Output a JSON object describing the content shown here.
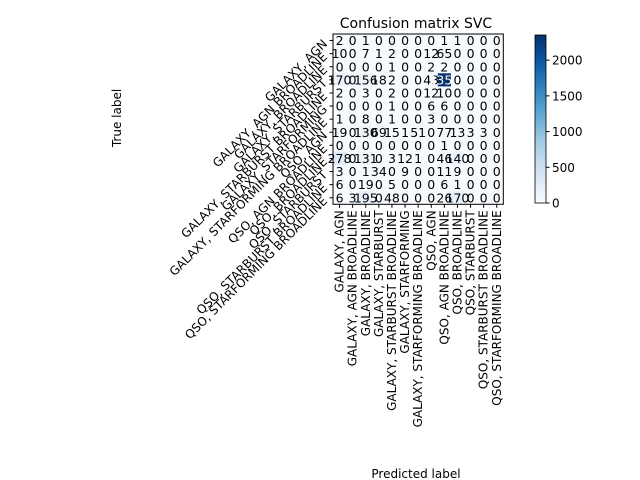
{
  "chart_data": {
    "type": "heatmap",
    "title": "Confusion matrix SVC",
    "xlabel": "Predicted label",
    "ylabel": "True label",
    "categories": [
      "GALAXY, AGN",
      "GALAXY, AGN BROADLINE",
      "GALAXY, BROADLINE",
      "GALAXY, STARBURST",
      "GALAXY, STARBURST BROADLINE",
      "GALAXY, STARFORMING",
      "GALAXY, STARFORMING BROADLINE",
      "QSO, AGN",
      "QSO, AGN BROADLINE",
      "QSO, BROADLINE",
      "QSO, STARBURST",
      "QSO, STARBURST BROADLINE",
      "QSO, STARFORMING BROADLINE"
    ],
    "matrix": [
      [
        2,
        0,
        1,
        0,
        0,
        0,
        0,
        0,
        1,
        1,
        0,
        0,
        0
      ],
      [
        10,
        0,
        7,
        1,
        2,
        0,
        0,
        12,
        65,
        0,
        0,
        0,
        0
      ],
      [
        0,
        0,
        0,
        0,
        1,
        0,
        0,
        2,
        2,
        0,
        0,
        0,
        0
      ],
      [
        170,
        0,
        156,
        18,
        2,
        0,
        0,
        43,
        2352,
        0,
        0,
        0,
        0
      ],
      [
        2,
        0,
        3,
        0,
        2,
        0,
        0,
        12,
        10,
        0,
        0,
        0,
        0
      ],
      [
        0,
        0,
        0,
        0,
        1,
        0,
        0,
        6,
        6,
        0,
        0,
        0,
        0
      ],
      [
        1,
        0,
        8,
        0,
        1,
        0,
        0,
        3,
        0,
        0,
        0,
        0,
        0
      ],
      [
        19,
        0,
        130,
        69,
        15,
        1,
        51,
        0,
        77,
        13,
        3,
        3,
        0
      ],
      [
        0,
        0,
        0,
        0,
        0,
        0,
        0,
        0,
        1,
        0,
        0,
        0,
        0
      ],
      [
        278,
        0,
        131,
        0,
        3,
        12,
        1,
        0,
        46,
        140,
        0,
        0,
        0
      ],
      [
        3,
        0,
        1,
        34,
        0,
        9,
        0,
        0,
        11,
        9,
        0,
        0,
        0
      ],
      [
        6,
        0,
        19,
        0,
        5,
        0,
        0,
        0,
        6,
        1,
        0,
        0,
        0
      ],
      [
        6,
        3,
        195,
        0,
        48,
        0,
        0,
        0,
        26,
        170,
        0,
        0,
        0
      ]
    ],
    "colorbar": {
      "colormap": "Blues",
      "range": [
        0,
        2352
      ],
      "ticks": [
        0,
        500,
        1000,
        1500,
        2000
      ]
    },
    "grid": false
  }
}
